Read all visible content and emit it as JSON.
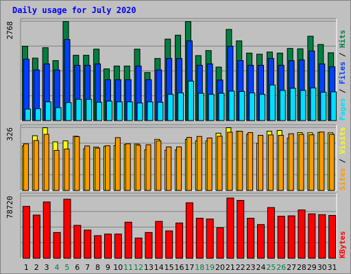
{
  "chart_data": [
    {
      "type": "bar",
      "title": "Daily usage for July 2020",
      "panel": "hits-files-pages",
      "categories": [
        "1",
        "2",
        "3",
        "4",
        "5",
        "6",
        "7",
        "8",
        "9",
        "10",
        "11",
        "12",
        "13",
        "14",
        "15",
        "16",
        "17",
        "18",
        "19",
        "20",
        "21",
        "22",
        "23",
        "24",
        "25",
        "26",
        "27",
        "28",
        "29",
        "30",
        "31"
      ],
      "weekend_days": [
        "4",
        "5",
        "11",
        "12",
        "18",
        "19",
        "25",
        "26"
      ],
      "ylabel_max": "2768",
      "ylim": [
        0,
        2768
      ],
      "grid": true,
      "side_labels": [
        "Pages",
        "Files",
        "Hits"
      ],
      "series": [
        {
          "name": "Hits",
          "color": "#008040",
          "values": [
            2080,
            1750,
            2040,
            1680,
            2768,
            1830,
            1830,
            2000,
            1450,
            1530,
            1530,
            2000,
            1350,
            1740,
            2280,
            2390,
            2768,
            1820,
            1960,
            1500,
            2550,
            2230,
            1890,
            1860,
            1920,
            1890,
            2020,
            2010,
            2360,
            2130,
            1900
          ]
        },
        {
          "name": "Files",
          "color": "#0040ff",
          "values": [
            1720,
            1420,
            1590,
            1420,
            2270,
            1550,
            1550,
            1590,
            1150,
            1150,
            1150,
            1530,
            1150,
            1420,
            1740,
            1740,
            2230,
            1550,
            1590,
            1140,
            2080,
            1680,
            1550,
            1550,
            1740,
            1550,
            1680,
            1700,
            1950,
            1590,
            1510
          ]
        },
        {
          "name": "Pages",
          "color": "#00e0ff",
          "values": [
            330,
            340,
            530,
            370,
            510,
            600,
            600,
            520,
            550,
            530,
            530,
            500,
            530,
            520,
            740,
            780,
            1110,
            770,
            740,
            770,
            830,
            820,
            780,
            740,
            1000,
            850,
            910,
            850,
            920,
            800,
            810
          ]
        }
      ]
    },
    {
      "type": "bar",
      "panel": "visits-sites",
      "categories": [
        "1",
        "2",
        "3",
        "4",
        "5",
        "6",
        "7",
        "8",
        "9",
        "10",
        "11",
        "12",
        "13",
        "14",
        "15",
        "16",
        "17",
        "18",
        "19",
        "20",
        "21",
        "22",
        "23",
        "24",
        "25",
        "26",
        "27",
        "28",
        "29",
        "30",
        "31"
      ],
      "ylabel_max": "326",
      "ylim": [
        0,
        326
      ],
      "grid": true,
      "side_labels": [
        "Sites",
        "Visits"
      ],
      "series": [
        {
          "name": "Visits",
          "color": "#ffff00",
          "values": [
            232,
            285,
            326,
            253,
            258,
            282,
            217,
            226,
            230,
            234,
            240,
            242,
            212,
            266,
            210,
            212,
            266,
            258,
            258,
            298,
            326,
            308,
            292,
            246,
            308,
            312,
            272,
            301,
            300,
            302,
            300
          ]
        },
        {
          "name": "Sites",
          "color": "#ff9900",
          "values": [
            243,
            260,
            292,
            209,
            216,
            280,
            232,
            221,
            233,
            275,
            243,
            236,
            238,
            258,
            227,
            227,
            276,
            281,
            273,
            282,
            303,
            308,
            301,
            287,
            289,
            287,
            295,
            292,
            290,
            304,
            292
          ]
        }
      ]
    },
    {
      "type": "bar",
      "panel": "kbytes",
      "categories": [
        "1",
        "2",
        "3",
        "4",
        "5",
        "6",
        "7",
        "8",
        "9",
        "10",
        "11",
        "12",
        "13",
        "14",
        "15",
        "16",
        "17",
        "18",
        "19",
        "20",
        "21",
        "22",
        "23",
        "24",
        "25",
        "26",
        "27",
        "28",
        "29",
        "30",
        "31"
      ],
      "ylabel_max": "78720",
      "ylim": [
        0,
        78720
      ],
      "grid": true,
      "side_labels": [
        "KBytes"
      ],
      "series": [
        {
          "name": "KBytes",
          "color": "#ff0000",
          "values": [
            66000,
            55000,
            71500,
            33000,
            75000,
            42000,
            36000,
            29000,
            31000,
            31000,
            46000,
            26000,
            33000,
            47000,
            35000,
            45000,
            70500,
            51000,
            50000,
            39000,
            76500,
            73500,
            51000,
            43000,
            64500,
            53500,
            54000,
            61500,
            56500,
            55500,
            54500
          ]
        }
      ]
    }
  ]
}
